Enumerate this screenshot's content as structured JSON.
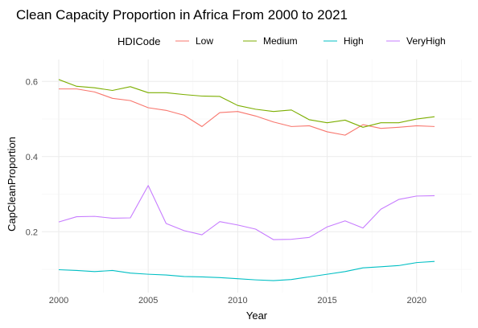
{
  "chart_data": {
    "type": "line",
    "title": "Clean Capacity Proportion in Africa From 2000 to 2021",
    "xlabel": "Year",
    "ylabel": "CapCleanProportion",
    "legend_title": "HDICode",
    "legend_position": "top",
    "grid": true,
    "xlim": [
      2000,
      2021
    ],
    "ylim": [
      0.068,
      0.607
    ],
    "x_ticks": [
      2000,
      2005,
      2010,
      2015,
      2020
    ],
    "x_tick_labels": [
      "2000",
      "2005",
      "2010",
      "2015",
      "2020"
    ],
    "y_ticks": [
      0.2,
      0.4,
      0.6
    ],
    "y_tick_labels": [
      "0.2",
      "0.4",
      "0.6"
    ],
    "x": [
      2000,
      2001,
      2002,
      2003,
      2004,
      2005,
      2006,
      2007,
      2008,
      2009,
      2010,
      2011,
      2012,
      2013,
      2014,
      2015,
      2016,
      2017,
      2018,
      2019,
      2020,
      2021
    ],
    "series": [
      {
        "name": "Low",
        "color": "#F8766D",
        "values": [
          0.58,
          0.58,
          0.572,
          0.555,
          0.549,
          0.53,
          0.523,
          0.51,
          0.48,
          0.517,
          0.52,
          0.508,
          0.492,
          0.48,
          0.482,
          0.466,
          0.457,
          0.485,
          0.475,
          0.478,
          0.482,
          0.48
        ]
      },
      {
        "name": "Medium",
        "color": "#7CAE00",
        "values": [
          0.605,
          0.587,
          0.583,
          0.576,
          0.586,
          0.57,
          0.57,
          0.565,
          0.561,
          0.56,
          0.536,
          0.526,
          0.52,
          0.524,
          0.498,
          0.49,
          0.497,
          0.478,
          0.49,
          0.49,
          0.5,
          0.506
        ]
      },
      {
        "name": "High",
        "color": "#00BFC4",
        "values": [
          0.099,
          0.097,
          0.094,
          0.097,
          0.09,
          0.087,
          0.085,
          0.081,
          0.08,
          0.078,
          0.075,
          0.072,
          0.07,
          0.073,
          0.08,
          0.087,
          0.094,
          0.104,
          0.107,
          0.11,
          0.118,
          0.121
        ]
      },
      {
        "name": "VeryHigh",
        "color": "#C77CFF",
        "values": [
          0.226,
          0.24,
          0.241,
          0.236,
          0.237,
          0.323,
          0.222,
          0.203,
          0.192,
          0.227,
          0.218,
          0.207,
          0.179,
          0.18,
          0.185,
          0.213,
          0.229,
          0.21,
          0.26,
          0.286,
          0.295,
          0.296
        ]
      }
    ]
  }
}
